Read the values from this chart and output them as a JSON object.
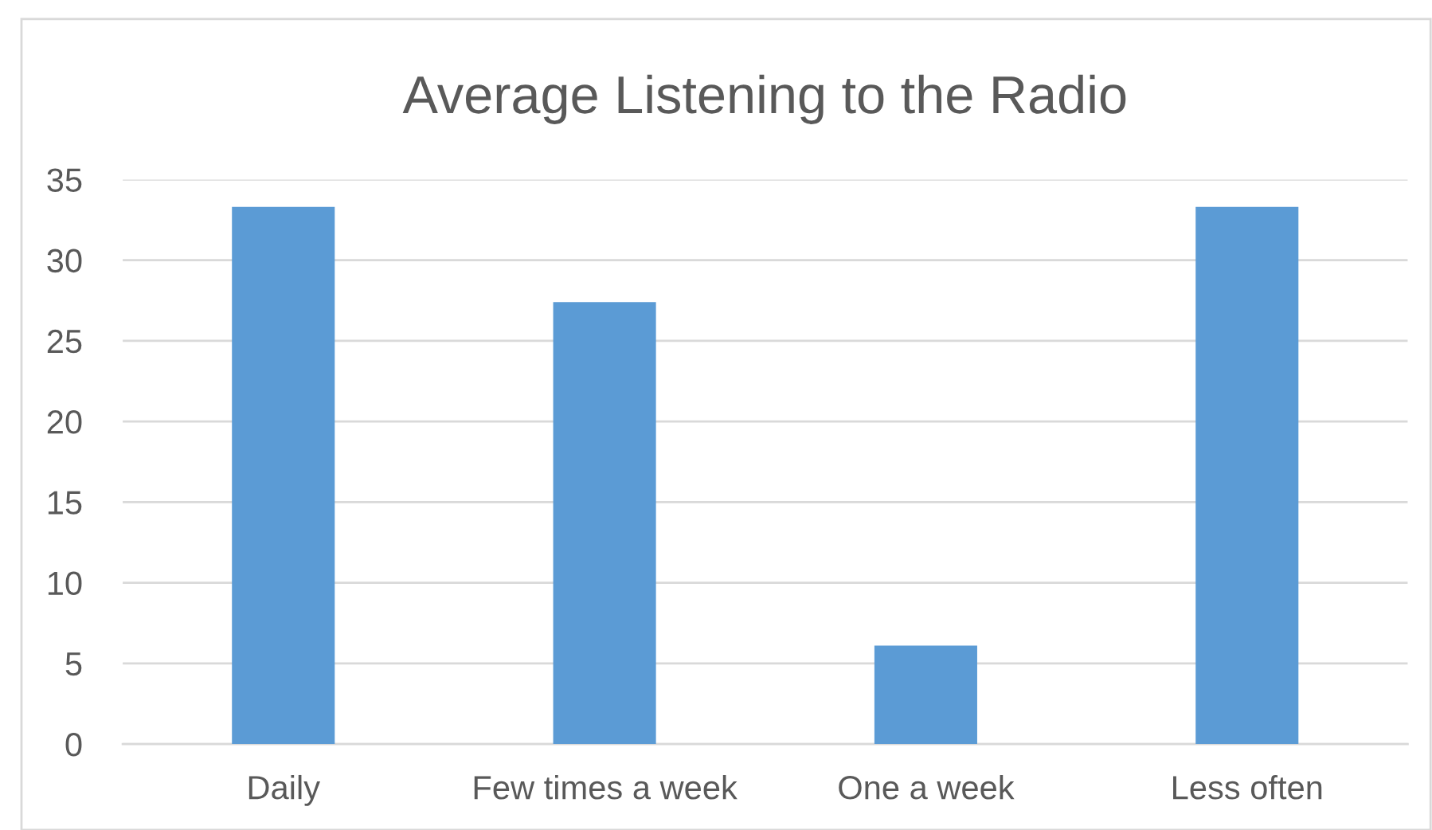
{
  "chart_data": {
    "type": "bar",
    "title": "Average Listening to the Radio",
    "categories": [
      "Daily",
      "Few times a week",
      "One a week",
      "Less often"
    ],
    "values": [
      33.3,
      27.4,
      6.1,
      33.3
    ],
    "color": "#5b9bd5",
    "ylim": [
      0,
      35
    ],
    "yticks": [
      0,
      5,
      10,
      15,
      20,
      25,
      30,
      35
    ],
    "grid": "y",
    "legend": false
  }
}
